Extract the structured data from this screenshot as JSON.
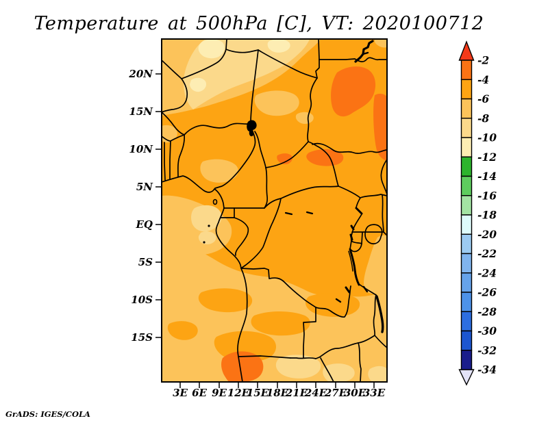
{
  "title": "Temperature at 500hPa [C], VT: 2020100712",
  "credit": "GrADS: IGES/COLA",
  "axes": {
    "lat_labels": [
      "20N",
      "15N",
      "10N",
      "5N",
      "EQ",
      "5S",
      "10S",
      "15S"
    ],
    "lon_labels": [
      "3E",
      "6E",
      "9E",
      "12E",
      "15E",
      "18E",
      "21E",
      "24E",
      "27E",
      "30E",
      "33E"
    ]
  },
  "colorbar": {
    "tick_labels": [
      "-2",
      "-4",
      "-6",
      "-8",
      "-10",
      "-12",
      "-14",
      "-16",
      "-18",
      "-20",
      "-22",
      "-24",
      "-26",
      "-28",
      "-30",
      "-32",
      "-34"
    ],
    "segment_colors": [
      "#fb7314",
      "#fda413",
      "#fcc35a",
      "#fbd98b",
      "#fdedb3",
      "#2db42d",
      "#5ecd5e",
      "#a3e3a3",
      "#defbfb",
      "#9ccaf1",
      "#80b4ee",
      "#66a3ea",
      "#4d92e8",
      "#2d6ee0",
      "#1d56d0",
      "#1a1d8c"
    ],
    "arrow_top_color": "#f43a1a",
    "arrow_bottom_color": "#e3e3f8"
  },
  "palette": {
    "band_minus2_minus4": "#fb7314",
    "band_minus4_minus6": "#fda413",
    "band_minus6_minus8": "#fcc35a",
    "band_minus8_minus10": "#fbd98b",
    "band_minus10_minus12": "#fdedb3",
    "border_color": "#000000",
    "background": "#ffffff"
  },
  "chart_data": {
    "type": "map",
    "variable": "Temperature at 500hPa",
    "units": "C",
    "valid_time": "2020100712",
    "region": {
      "lon_tick_range": [
        "3E",
        "33E"
      ],
      "lat_tick_range": [
        "20N",
        "15S"
      ]
    },
    "colorbar_levels_c": [
      -2,
      -4,
      -6,
      -8,
      -10,
      -12,
      -14,
      -16,
      -18,
      -20,
      -22,
      -24,
      -26,
      -28,
      -30,
      -32,
      -34
    ],
    "field_summary": {
      "dominant_band_c": "-4 to -6 over most of central Africa",
      "secondary_band_c": "-6 to -8 along northwest band, Gulf of Guinea coast and southern third",
      "pale_bands_c": "-8 to -12 in far north (~18-24N) and scattered patches near 18-20S",
      "warmest_patches_c": "-2 to -4 over NE Sudan (~14-21N), near 9N between 18-27E, and Angola coast (~18-20S)"
    }
  }
}
